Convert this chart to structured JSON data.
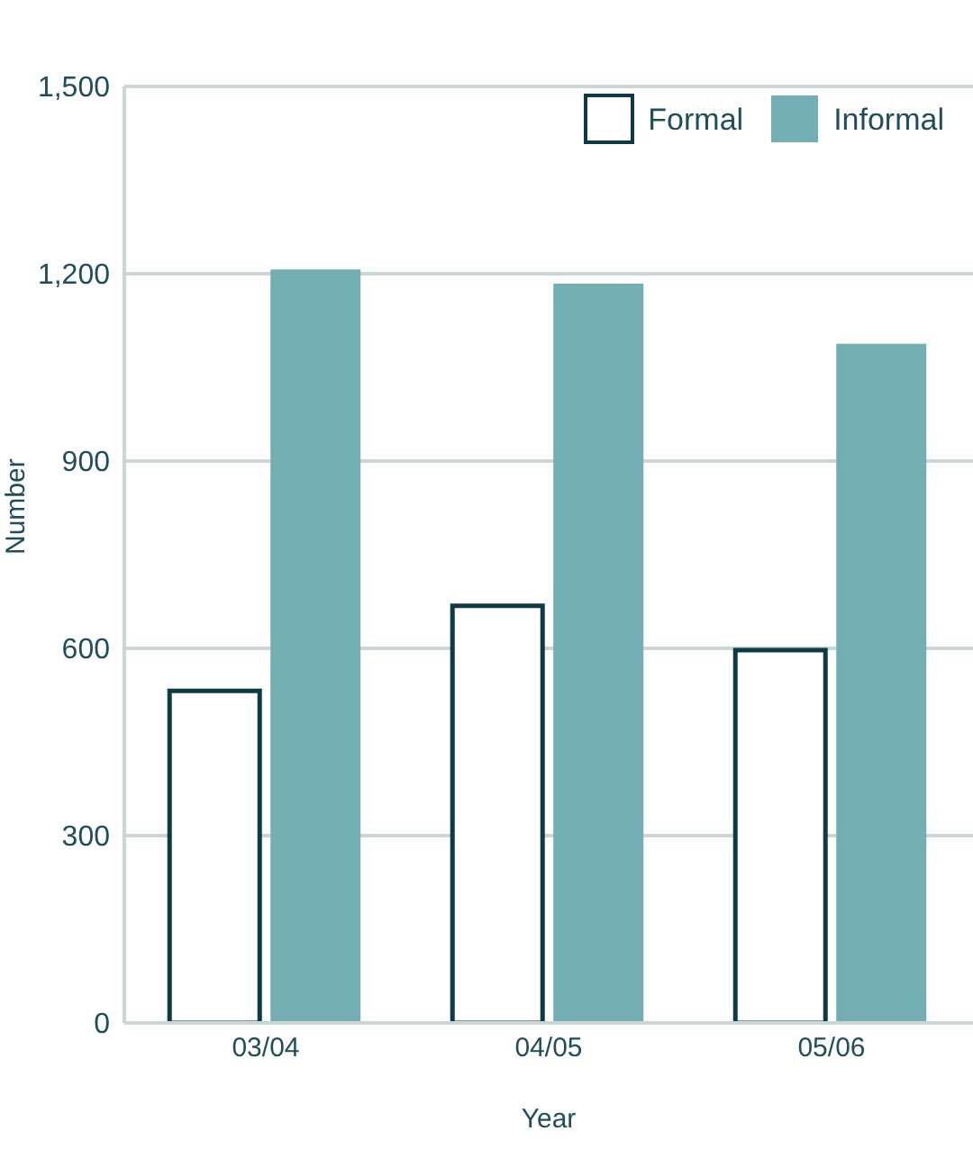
{
  "chart_data": {
    "type": "bar",
    "xlabel": "Year",
    "ylabel": "Number",
    "categories": [
      "03/04",
      "04/05",
      "05/06"
    ],
    "series": [
      {
        "name": "Formal",
        "color": "#0e3a45",
        "values": [
          532,
          668,
          597
        ]
      },
      {
        "name": "Informal",
        "color": "#73aeb5",
        "values": [
          1207,
          1184,
          1088
        ]
      }
    ],
    "ylim": [
      0,
      1500
    ],
    "yticks": [
      0,
      300,
      600,
      900,
      {
        "value": 1200,
        "label": "1,200"
      },
      {
        "value": 1500,
        "label": "1,500"
      }
    ],
    "grid": "y",
    "legend": "top right"
  }
}
